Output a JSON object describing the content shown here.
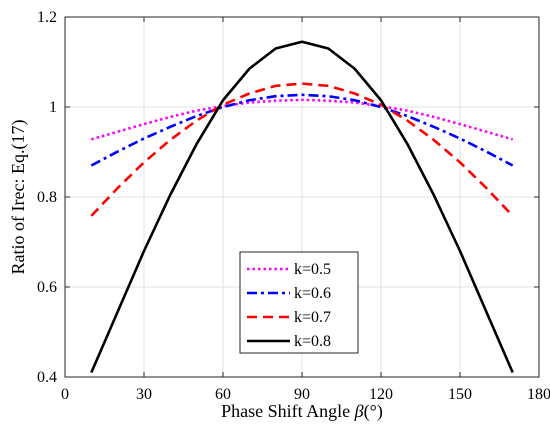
{
  "chart_data": {
    "type": "line",
    "title": "",
    "xlabel": "Phase Shift Angle β (°)",
    "xlabel_parts": {
      "text": "Phase Shift Angle ",
      "symbol": "β",
      "unit": "(°)"
    },
    "ylabel": "Ratio of Irec: Eq.(17)",
    "xlim": [
      0,
      180
    ],
    "ylim": [
      0.4,
      1.2
    ],
    "x_ticks": [
      0,
      30,
      60,
      90,
      120,
      150,
      180
    ],
    "x_tick_labels": [
      "0",
      "30",
      "60",
      "90",
      "120",
      "150",
      "180"
    ],
    "y_ticks": [
      0.4,
      0.6,
      0.8,
      1.0,
      1.2
    ],
    "y_tick_labels": [
      "0.4",
      "0.6",
      "0.8",
      "1",
      "1.2"
    ],
    "grid": true,
    "legend_position": "bottom-center",
    "x": [
      10,
      20,
      30,
      40,
      50,
      60,
      70,
      80,
      90,
      100,
      110,
      120,
      130,
      140,
      150,
      160,
      170
    ],
    "series": [
      {
        "name": "k=0.5",
        "color": "#ff00ff",
        "dash": "dotted",
        "values": [
          0.928,
          0.945,
          0.962,
          0.978,
          0.992,
          1.002,
          1.01,
          1.014,
          1.016,
          1.014,
          1.01,
          1.002,
          0.992,
          0.978,
          0.962,
          0.945,
          0.928
        ]
      },
      {
        "name": "k=0.6",
        "color": "#0000ff",
        "dash": "dashdot",
        "values": [
          0.87,
          0.901,
          0.93,
          0.956,
          0.98,
          1.0,
          1.015,
          1.024,
          1.027,
          1.024,
          1.015,
          1.0,
          0.98,
          0.956,
          0.93,
          0.901,
          0.87
        ]
      },
      {
        "name": "k=0.7",
        "color": "#ff0000",
        "dash": "dashed",
        "values": [
          0.758,
          0.82,
          0.877,
          0.927,
          0.97,
          1.005,
          1.03,
          1.047,
          1.052,
          1.047,
          1.03,
          1.005,
          0.97,
          0.927,
          0.877,
          0.82,
          0.758
        ]
      },
      {
        "name": "k=0.8",
        "color": "#000000",
        "dash": "solid",
        "values": [
          0.41,
          0.545,
          0.68,
          0.805,
          0.918,
          1.015,
          1.085,
          1.13,
          1.145,
          1.13,
          1.085,
          1.015,
          0.918,
          0.805,
          0.68,
          0.545,
          0.41
        ]
      }
    ]
  }
}
